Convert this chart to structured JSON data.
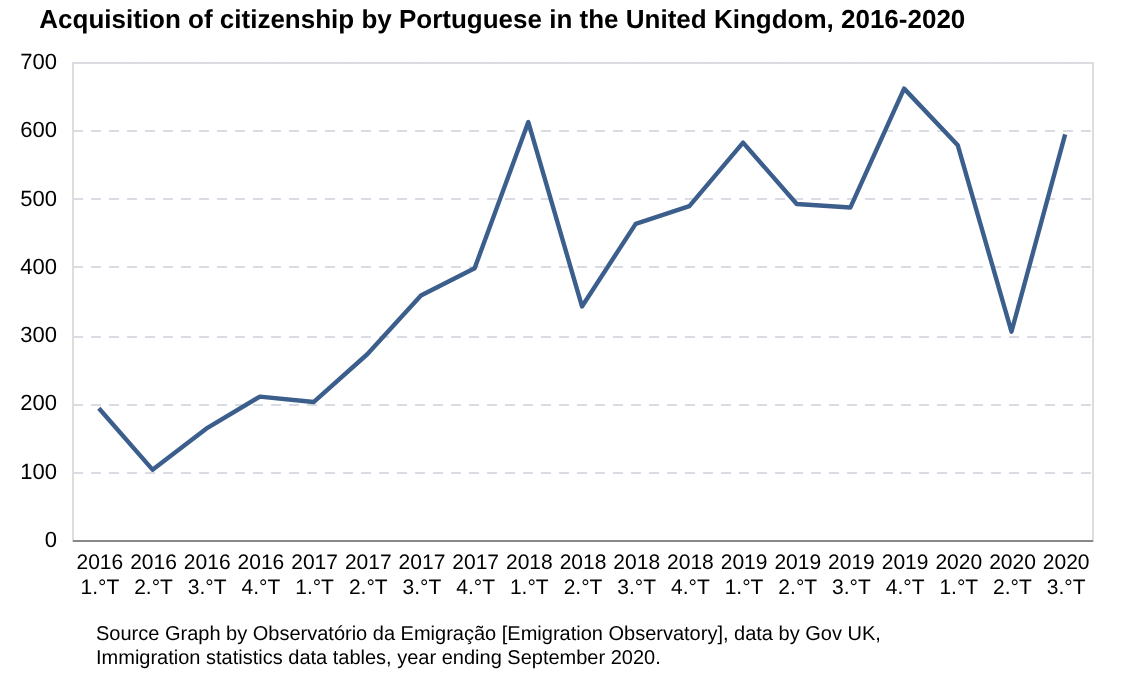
{
  "chart_data": {
    "type": "line",
    "title": "Acquisition  of citizenship by Portuguese in the United Kingdom,  2016-2020",
    "categories": [
      "2016 1.°T",
      "2016 2.°T",
      "2016 3.°T",
      "2016 4.°T",
      "2017 1.°T",
      "2017 2.°T",
      "2017 3.°T",
      "2017 4.°T",
      "2018 1.°T",
      "2018 2.°T",
      "2018 3.°T",
      "2018 4.°T",
      "2019 1.°T",
      "2019 2.°T",
      "2019 3.°T",
      "2019 4.°T",
      "2020 1.°T",
      "2020 2.°T",
      "2020 3.°T"
    ],
    "series": [
      {
        "color": "#3b5e8c",
        "values": [
          193,
          103,
          163,
          210,
          202,
          272,
          358,
          398,
          612,
          342,
          463,
          489,
          582,
          492,
          487,
          661,
          578,
          305,
          594
        ]
      }
    ],
    "ylim": [
      0,
      700
    ],
    "yticks": [
      0,
      100,
      200,
      300,
      400,
      500,
      600,
      700
    ],
    "grid": "y",
    "marker": "none",
    "line_style": "solid",
    "annotations": [
      "Source  Graph by Observatório da Emigração [Emigration Observatory], data by Gov UK,\nImmigration statistics data tables, year ending September 2020."
    ]
  }
}
